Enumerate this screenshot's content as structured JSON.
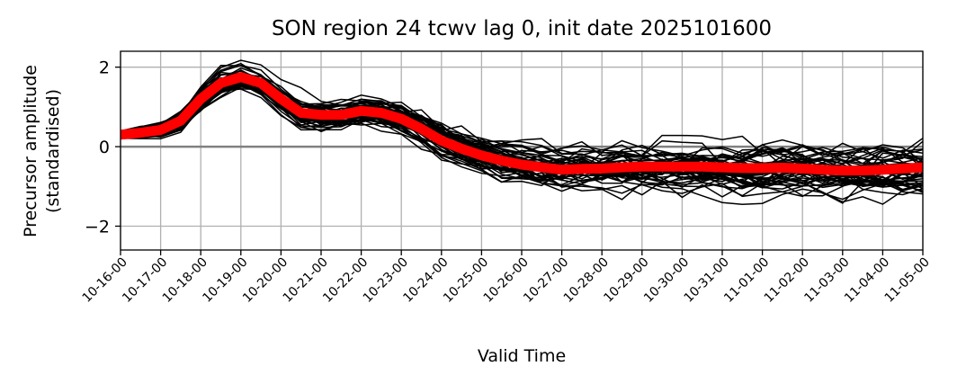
{
  "chart_data": {
    "type": "line",
    "title": "SON region 24 tcwv lag 0, init date 2025101600",
    "xlabel": "Valid Time",
    "ylabel_lines": [
      "Precursor amplitude",
      "(standardised)"
    ],
    "ylim": [
      -2.6,
      2.4
    ],
    "yticks": [
      -2,
      0,
      2
    ],
    "ytick_labels": [
      "−2",
      "0",
      "2"
    ],
    "x_tick_labels": [
      "10-16-00",
      "10-17-00",
      "10-18-00",
      "10-19-00",
      "10-20-00",
      "10-21-00",
      "10-22-00",
      "10-23-00",
      "10-24-00",
      "10-25-00",
      "10-26-00",
      "10-27-00",
      "10-28-00",
      "10-29-00",
      "10-30-00",
      "10-31-00",
      "11-01-00",
      "11-02-00",
      "11-03-00",
      "11-04-00",
      "11-05-00"
    ],
    "grid": true,
    "zero_line": 0,
    "ensemble_color": "#000000",
    "mean_color": "#ff0000",
    "ensemble_member_count": 50,
    "mean_series": {
      "x_days": [
        0,
        0.5,
        1,
        1.5,
        2,
        2.5,
        3,
        3.5,
        4,
        4.5,
        5,
        5.5,
        6,
        6.5,
        7,
        7.5,
        8,
        8.5,
        9,
        9.5,
        10,
        10.5,
        11,
        11.5,
        12,
        12.5,
        13,
        13.5,
        14,
        14.5,
        15,
        15.5,
        16,
        16.5,
        17,
        17.5,
        18,
        18.5,
        19,
        19.5,
        20
      ],
      "values": [
        0.3,
        0.35,
        0.42,
        0.65,
        1.2,
        1.6,
        1.75,
        1.6,
        1.2,
        0.85,
        0.8,
        0.8,
        0.9,
        0.85,
        0.7,
        0.45,
        0.15,
        -0.05,
        -0.22,
        -0.35,
        -0.45,
        -0.52,
        -0.58,
        -0.56,
        -0.55,
        -0.52,
        -0.5,
        -0.5,
        -0.5,
        -0.5,
        -0.52,
        -0.54,
        -0.54,
        -0.53,
        -0.55,
        -0.58,
        -0.6,
        -0.6,
        -0.58,
        -0.55,
        -0.52
      ]
    },
    "spread_envelope": [
      0.15,
      0.2,
      0.3,
      0.35,
      0.45,
      0.45,
      0.4,
      0.4,
      0.4,
      0.45,
      0.45,
      0.5,
      0.5,
      0.5,
      0.5,
      0.55,
      0.55,
      0.6,
      0.6,
      0.65,
      0.65,
      0.7,
      0.7,
      0.72,
      0.75,
      0.75,
      0.78,
      0.8,
      0.8,
      0.8,
      0.8,
      0.82,
      0.82,
      0.82,
      0.82,
      0.85,
      0.85,
      0.85,
      0.85,
      0.85,
      0.85
    ]
  }
}
